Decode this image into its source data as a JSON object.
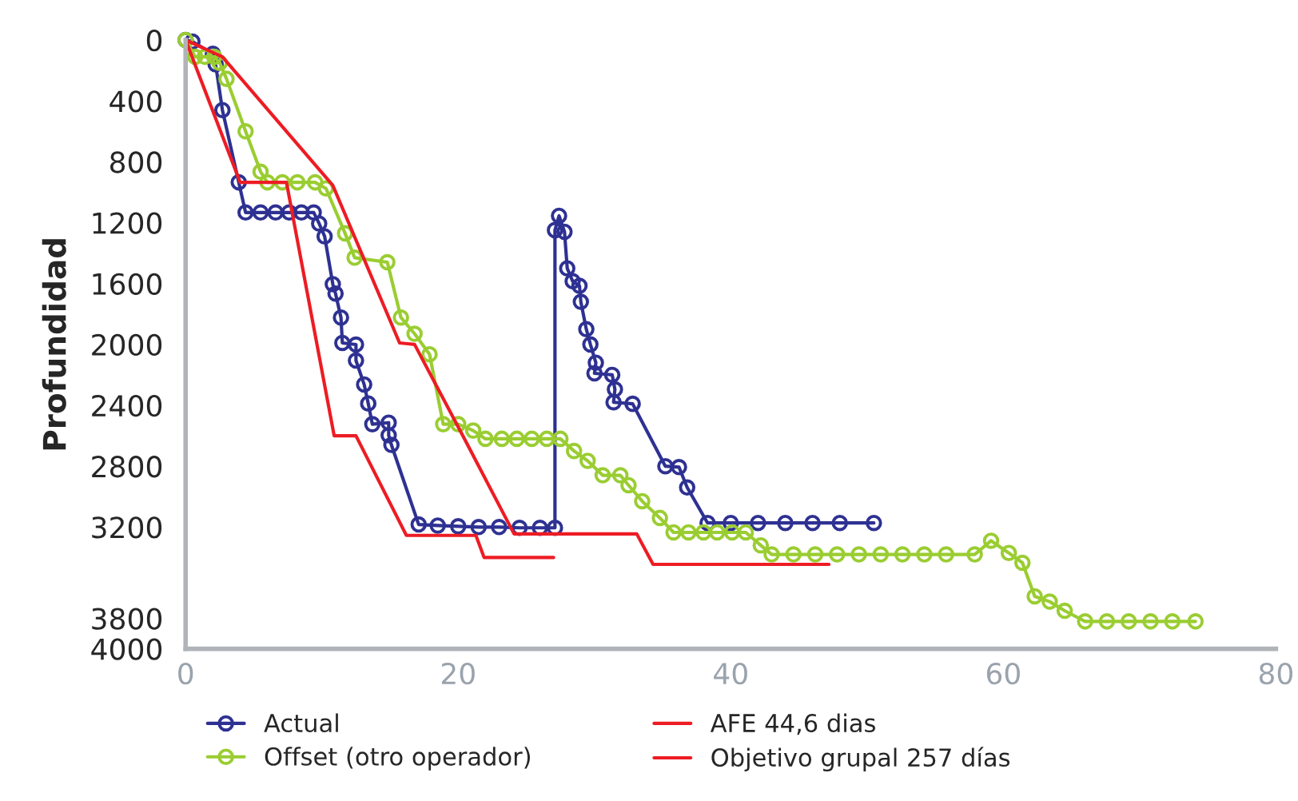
{
  "chart_data": {
    "type": "line",
    "ylabel": "Profundidad",
    "xlim": [
      0,
      80
    ],
    "xticks": [
      0,
      20,
      40,
      60,
      80
    ],
    "ylim": [
      4000,
      0
    ],
    "yticks": [
      0,
      400,
      800,
      1200,
      1600,
      2000,
      2400,
      2800,
      3200,
      3800,
      4000
    ],
    "legend": "bottom",
    "grid": false,
    "series": [
      {
        "name": "Actual",
        "color": "#2e3192",
        "marker": "circle",
        "x": [
          0,
          0.5,
          2.0,
          2.2,
          2.7,
          3.9,
          4.4,
          5.5,
          6.6,
          7.6,
          8.5,
          9.4,
          9.8,
          10.2,
          10.8,
          11.0,
          11.4,
          11.5,
          12.5,
          12.5,
          13.1,
          13.4,
          13.7,
          14.9,
          14.9,
          15.1,
          17.1,
          18.5,
          20,
          21.5,
          23,
          24.5,
          26,
          27.1,
          27.1,
          27.4,
          27.8,
          28.0,
          28.4,
          28.9,
          29.0,
          29.4,
          29.7,
          30.1,
          30.0,
          31.3,
          31.5,
          31.4,
          32.8,
          35.2,
          36.2,
          36.8,
          38.3,
          40,
          42,
          44,
          46,
          48,
          50.5
        ],
        "values": [
          0,
          10,
          90,
          160,
          460,
          935,
          1133,
          1133,
          1133,
          1133,
          1133,
          1133,
          1206,
          1290,
          1604,
          1666,
          1823,
          1990,
          2001,
          2106,
          2263,
          2388,
          2524,
          2514,
          2597,
          2660,
          3183,
          3190,
          3195,
          3200,
          3200,
          3205,
          3205,
          3205,
          1249,
          1155,
          1260,
          1500,
          1585,
          1615,
          1720,
          1900,
          2000,
          2120,
          2190,
          2200,
          2295,
          2380,
          2390,
          2800,
          2806,
          2940,
          3173,
          3173,
          3173,
          3173,
          3173,
          3173,
          3173
        ]
      },
      {
        "name": "Offset (otro operador)",
        "color": "#9acd32",
        "marker": "circle",
        "x": [
          0,
          0.7,
          1.4,
          2.1,
          2.5,
          3.0,
          4.4,
          5.5,
          6.0,
          7.1,
          8.2,
          9.5,
          10.3,
          11.7,
          12.4,
          14.8,
          15.8,
          16.8,
          17.9,
          18.9,
          20.0,
          21.1,
          22.0,
          23.2,
          24.3,
          25.4,
          26.5,
          27.5,
          28.5,
          29.5,
          30.6,
          31.9,
          32.5,
          33.5,
          34.8,
          35.8,
          36.9,
          38.0,
          39.0,
          40.1,
          41.1,
          42.2,
          43.0,
          44.6,
          46.2,
          47.8,
          49.4,
          51.0,
          52.6,
          54.2,
          55.8,
          57.9,
          59.1,
          60.4,
          61.4,
          62.3,
          63.4,
          64.5,
          66.0,
          67.6,
          69.2,
          70.8,
          72.4,
          74.1
        ],
        "values": [
          0,
          110,
          110,
          110,
          150,
          255,
          600,
          865,
          935,
          935,
          935,
          935,
          975,
          1270,
          1430,
          1460,
          1823,
          1930,
          2065,
          2524,
          2524,
          2566,
          2620,
          2620,
          2620,
          2620,
          2620,
          2620,
          2700,
          2765,
          2860,
          2860,
          2925,
          3030,
          3140,
          3235,
          3235,
          3235,
          3235,
          3235,
          3235,
          3320,
          3380,
          3380,
          3380,
          3380,
          3380,
          3380,
          3380,
          3380,
          3380,
          3380,
          3290,
          3370,
          3435,
          3655,
          3690,
          3750,
          3820,
          3820,
          3820,
          3820,
          3820,
          3820
        ]
      },
      {
        "name": "AFE 44,6 dias",
        "color": "#ed1c24",
        "marker": "none",
        "x": [
          0,
          2.7,
          10.8,
          15.7,
          16.8,
          20.4,
          24.1,
          33.1,
          34.3,
          47.2
        ],
        "values": [
          0,
          110,
          955,
          1990,
          2000,
          2610,
          3245,
          3245,
          3445,
          3445
        ]
      },
      {
        "name": "Objetivo grupal 257 días",
        "color": "#ed1c24",
        "marker": "none",
        "x": [
          0,
          4.0,
          7.4,
          10.9,
          12.5,
          16.2,
          21.3,
          21.9,
          27.0
        ],
        "values": [
          0,
          935,
          935,
          2600,
          2600,
          3255,
          3255,
          3400,
          3400
        ]
      }
    ]
  }
}
